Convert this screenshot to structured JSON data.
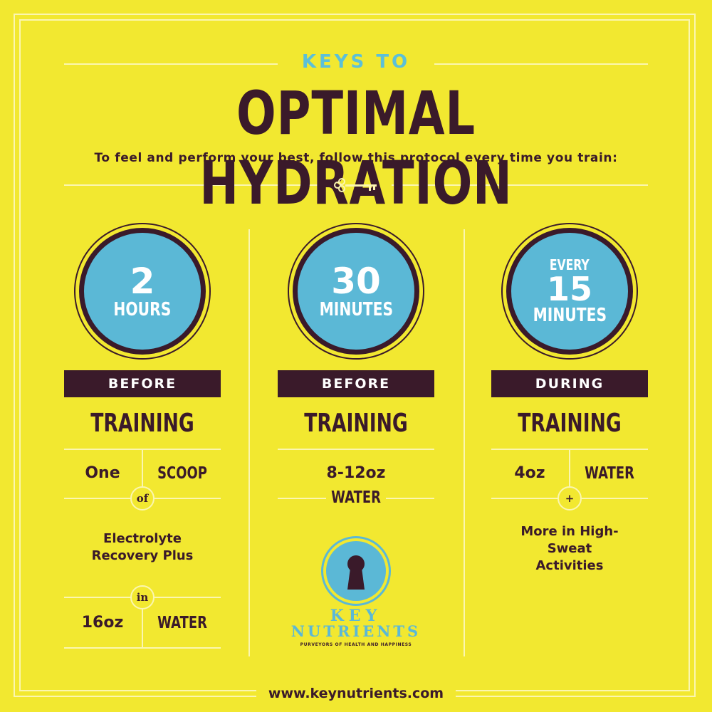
{
  "header": {
    "kicker": "KEYS TO",
    "title": "OPTIMAL HYDRATION",
    "subtitle": "To feel and perform your best, follow this protocol every time you train:"
  },
  "colors": {
    "background": "#f2e830",
    "dark": "#3a1a2a",
    "accent_blue": "#5bb8d6",
    "rule_lines": "#fbf6b0"
  },
  "columns": [
    {
      "circle": {
        "number": "2",
        "unit": "HOURS"
      },
      "band": "BEFORE",
      "phase": "TRAINING",
      "rows": {
        "amount": "One",
        "measure": "SCOOP",
        "connector": "of",
        "product": "Electrolyte Recovery Plus",
        "connector2": "in",
        "amount2": "16oz",
        "measure2": "WATER"
      }
    },
    {
      "circle": {
        "number": "30",
        "unit": "MINUTES"
      },
      "band": "BEFORE",
      "phase": "TRAINING",
      "rows": {
        "amount": "8-12oz",
        "measure": "WATER"
      }
    },
    {
      "circle": {
        "prefix": "EVERY",
        "number": "15",
        "unit": "MINUTES"
      },
      "band": "DURING",
      "phase": "TRAINING",
      "rows": {
        "amount": "4oz",
        "measure": "WATER",
        "connector": "+",
        "note": "More in High-Sweat Activities"
      }
    }
  ],
  "logo": {
    "line1": "KEY",
    "line2": "NUTRIENTS",
    "tagline": "PURVEYORS OF HEALTH AND HAPPINESS",
    "icon": "keyhole-icon"
  },
  "footer": {
    "website": "www.keynutrients.com"
  }
}
